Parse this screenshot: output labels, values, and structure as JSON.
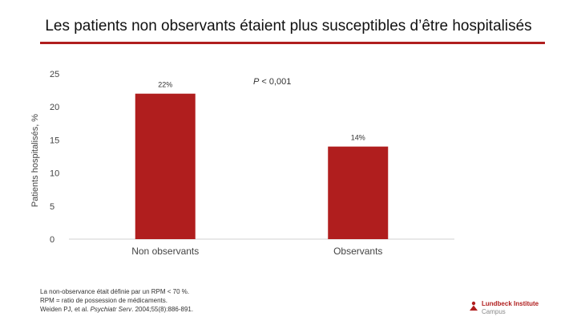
{
  "slide": {
    "title": "Les patients non observants étaient plus susceptibles d’être hospitalisés",
    "accent_color": "#b01e1e"
  },
  "annotation": {
    "p_symbol": "P",
    "p_text": " < 0,001"
  },
  "chart_data": {
    "type": "bar",
    "categories": [
      "Non observants",
      "Observants"
    ],
    "values": [
      22,
      14
    ],
    "data_labels": [
      "22%",
      "14%"
    ],
    "ylabel": "Patients hospitalisés, %",
    "xlabel": "",
    "ylim": [
      0,
      25
    ],
    "yticks": [
      "0",
      "5",
      "10",
      "15",
      "20",
      "25"
    ],
    "bar_color": "#b01e1e",
    "grid": false
  },
  "footnote": {
    "line1": "La non-observance était définie par un RPM < 70 %.",
    "line2": "RPM = ratio de possession de médicaments.",
    "line3_before": "Weiden PJ, et al. ",
    "line3_journal": "Psychiatr Serv",
    "line3_after": ". 2004;55(8):886-891."
  },
  "logo": {
    "name": "Lundbeck Institute",
    "sub": "Campus",
    "icon": "lundbeck-logo-icon"
  }
}
